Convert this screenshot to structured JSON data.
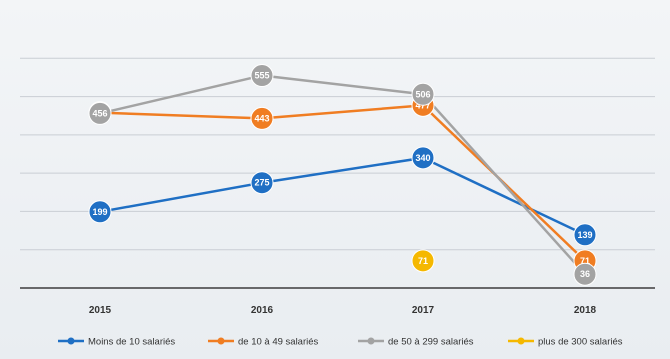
{
  "chart_data": {
    "type": "line",
    "x": [
      "2015",
      "2016",
      "2017",
      "2018"
    ],
    "ylim": [
      0,
      700
    ],
    "grid": true,
    "legend_position": "bottom",
    "series": [
      {
        "name": "Moins de 10 salariés",
        "color": "#1f6fc4",
        "values": [
          199,
          275,
          340,
          139
        ]
      },
      {
        "name": "de 10 à 49 salariés",
        "color": "#f07d22",
        "values": [
          458,
          443,
          477,
          71
        ]
      },
      {
        "name": "de 50 à 299 salariés",
        "color": "#a3a3a3",
        "values": [
          456,
          555,
          506,
          36
        ]
      },
      {
        "name": "plus de 300 salariés",
        "color": "#f5b800",
        "values": [
          null,
          null,
          71,
          null
        ]
      }
    ]
  }
}
